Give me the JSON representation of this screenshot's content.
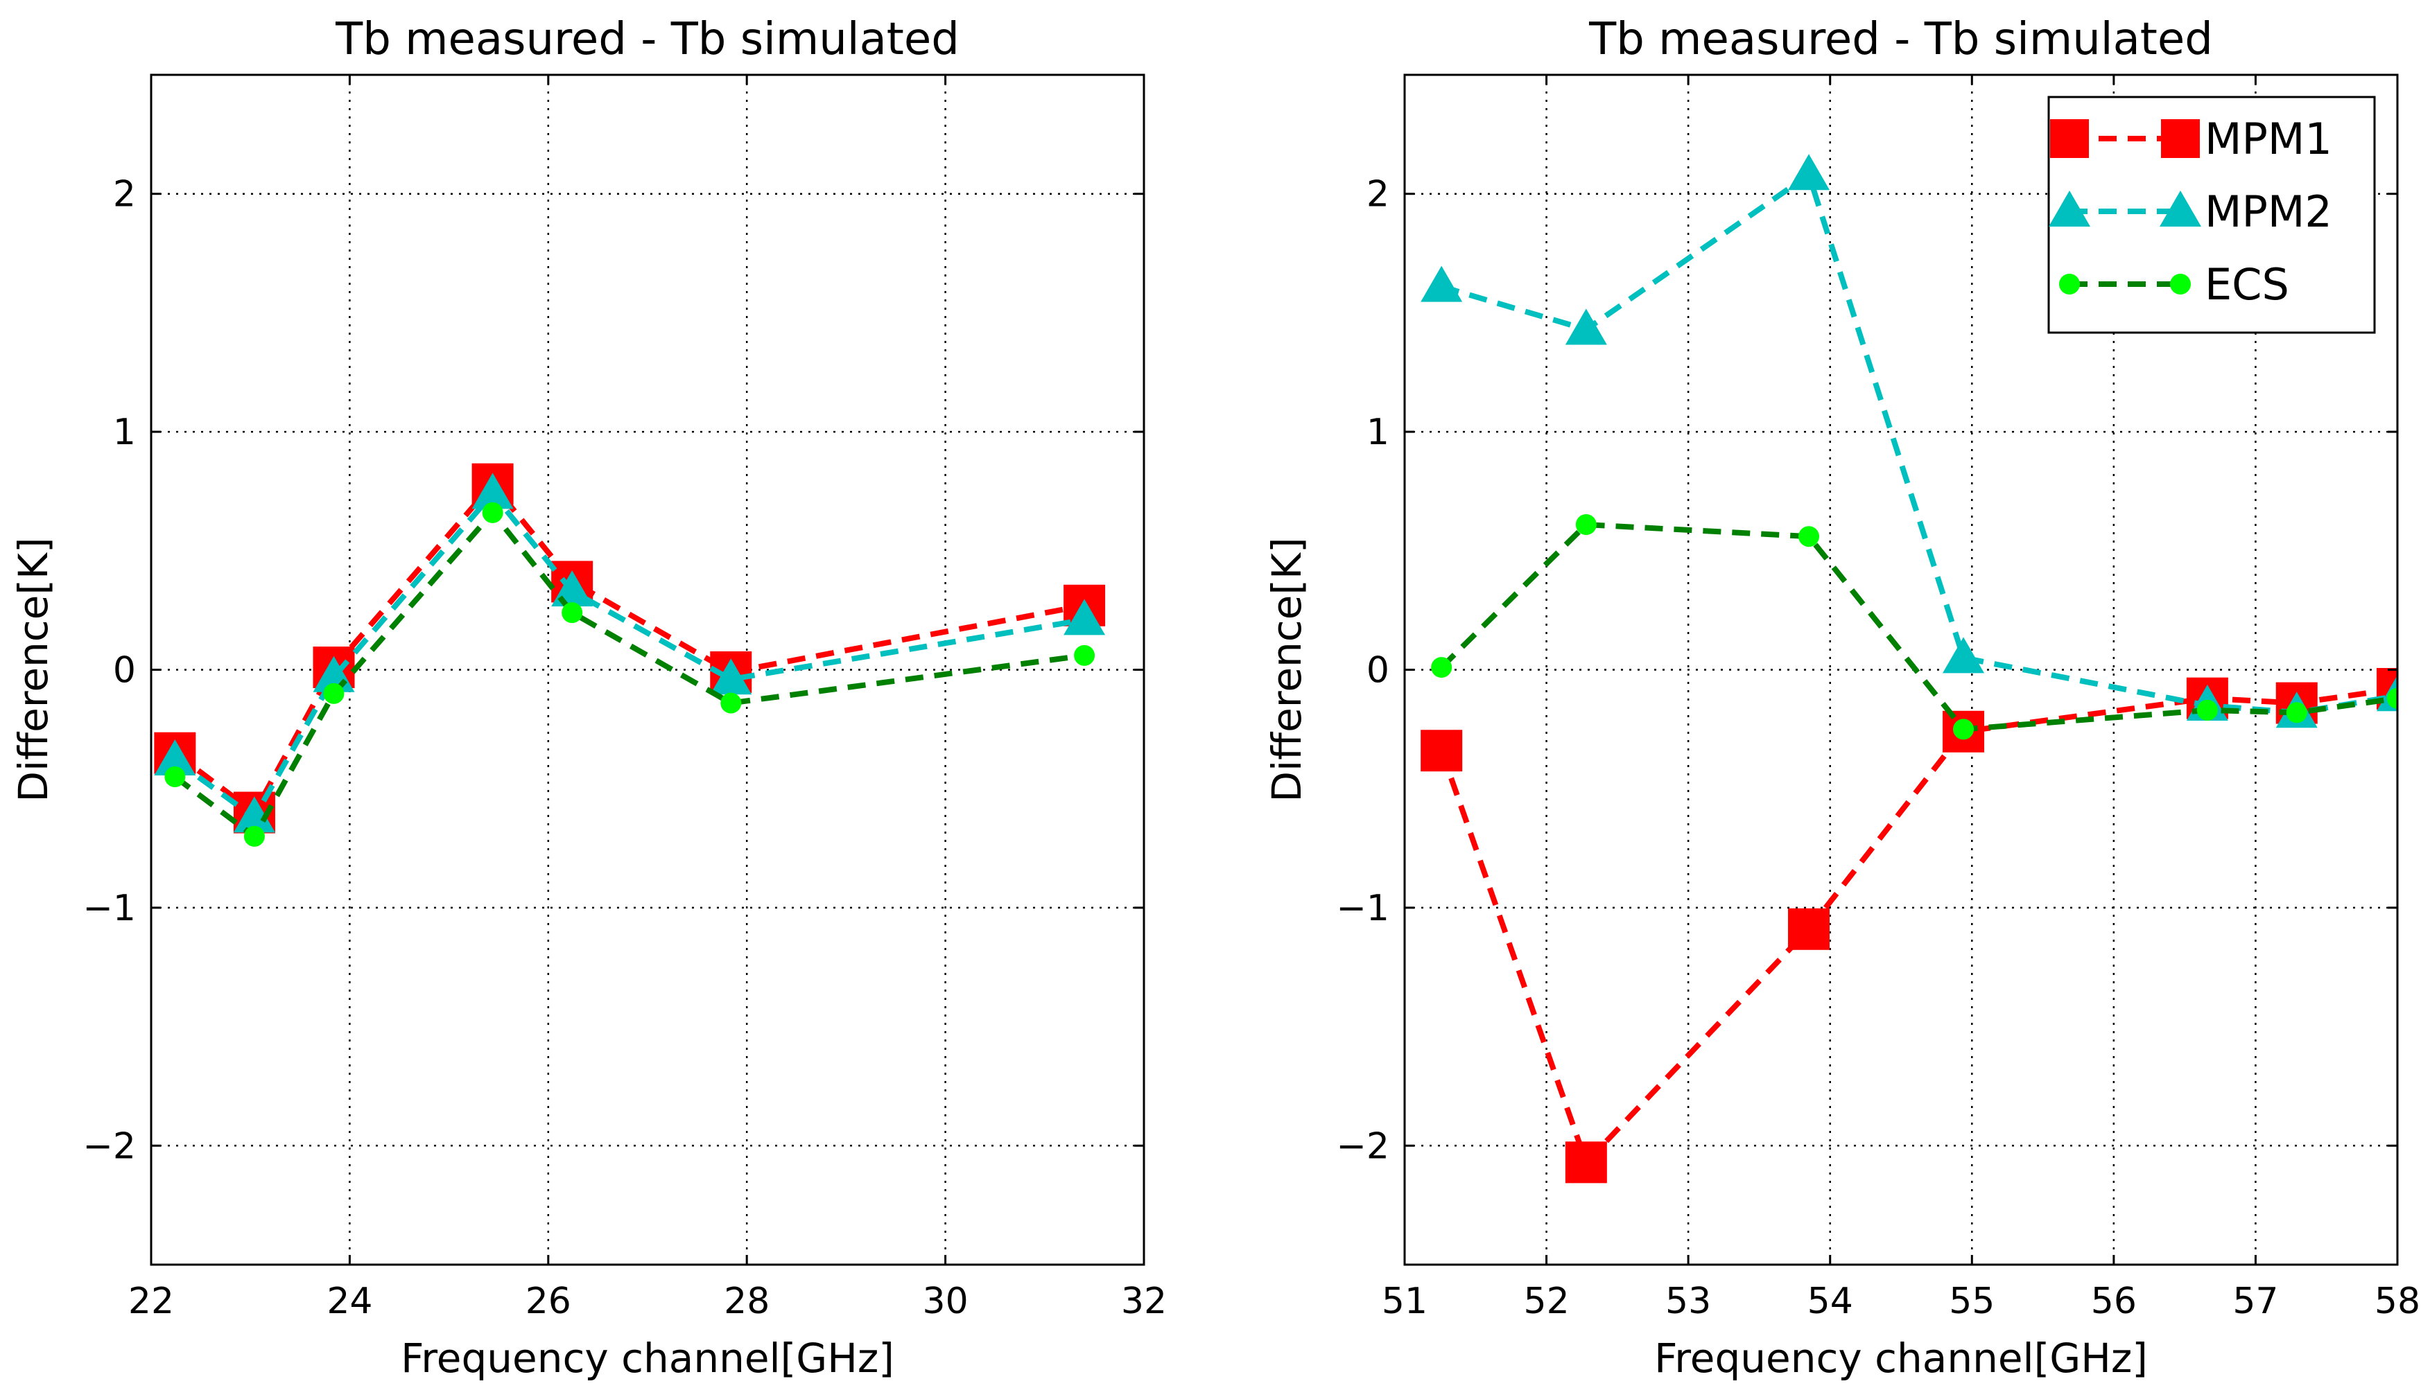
{
  "chart_data": [
    {
      "type": "line",
      "title": "Tb measured - Tb simulated",
      "xlabel": "Frequency channel[GHz]",
      "ylabel": "Difference[K]",
      "xlim": [
        22,
        32
      ],
      "ylim": [
        -2.5,
        2.5
      ],
      "xticks": [
        22,
        24,
        26,
        28,
        30,
        32
      ],
      "yticks": [
        -2,
        -1,
        0,
        1,
        2
      ],
      "xtick_labels": [
        "22",
        "24",
        "26",
        "28",
        "30",
        "32"
      ],
      "ytick_labels": [
        "−2",
        "−1",
        "0",
        "1",
        "2"
      ],
      "grid": true,
      "x": [
        22.24,
        23.04,
        23.84,
        25.44,
        26.24,
        27.84,
        31.4
      ],
      "series": [
        {
          "name": "MPM1",
          "color": "#ff0000",
          "marker": "square",
          "values": [
            -0.35,
            -0.6,
            0.01,
            0.78,
            0.37,
            -0.01,
            0.27
          ]
        },
        {
          "name": "MPM2",
          "color": "#00bfbf",
          "marker": "triangle",
          "values": [
            -0.38,
            -0.62,
            -0.03,
            0.74,
            0.33,
            -0.04,
            0.21
          ]
        },
        {
          "name": "ECS",
          "color": "#008000",
          "marker": "circle",
          "marker_color": "#00ff00",
          "values": [
            -0.45,
            -0.7,
            -0.1,
            0.66,
            0.24,
            -0.14,
            0.06
          ]
        }
      ]
    },
    {
      "type": "line",
      "title": "Tb measured - Tb simulated",
      "xlabel": "Frequency channel[GHz]",
      "ylabel": "Difference[K]",
      "xlim": [
        51,
        58
      ],
      "ylim": [
        -2.5,
        2.5
      ],
      "xticks": [
        51,
        52,
        53,
        54,
        55,
        56,
        57,
        58
      ],
      "yticks": [
        -2,
        -1,
        0,
        1,
        2
      ],
      "xtick_labels": [
        "51",
        "52",
        "53",
        "54",
        "55",
        "56",
        "57",
        "58"
      ],
      "ytick_labels": [
        "−2",
        "−1",
        "0",
        "1",
        "2"
      ],
      "grid": true,
      "legend": "top-right",
      "x": [
        51.26,
        52.28,
        53.85,
        54.94,
        56.66,
        57.29,
        58.0
      ],
      "series": [
        {
          "name": "MPM1",
          "color": "#ff0000",
          "marker": "square",
          "values": [
            -0.34,
            -2.07,
            -1.09,
            -0.26,
            -0.12,
            -0.14,
            -0.08
          ]
        },
        {
          "name": "MPM2",
          "color": "#00bfbf",
          "marker": "triangle",
          "values": [
            1.61,
            1.43,
            2.08,
            0.05,
            -0.15,
            -0.18,
            -0.11
          ]
        },
        {
          "name": "ECS",
          "color": "#008000",
          "marker": "circle",
          "marker_color": "#00ff00",
          "values": [
            0.01,
            0.61,
            0.56,
            -0.25,
            -0.17,
            -0.18,
            -0.12
          ]
        }
      ]
    }
  ]
}
